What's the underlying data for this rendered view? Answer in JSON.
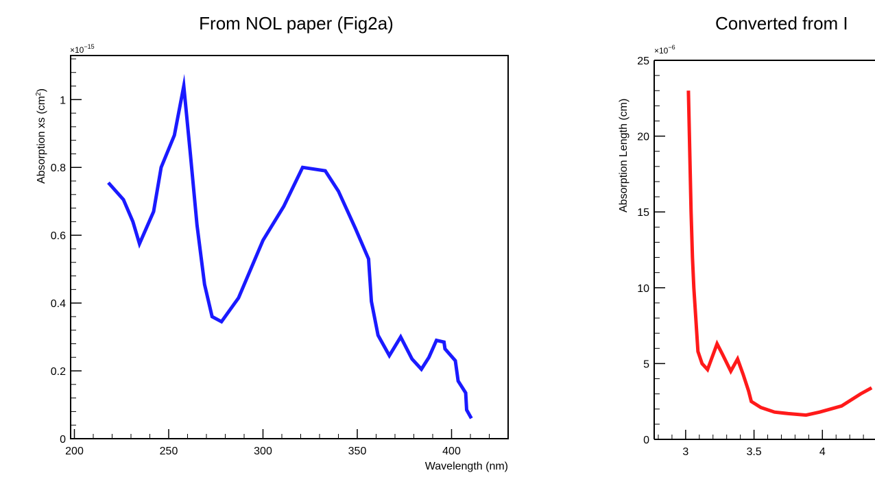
{
  "chart_data": [
    {
      "type": "line",
      "title": "From NOL paper (Fig2a)",
      "xlabel": "Wavelength (nm)",
      "ylabel": "Absorption xs (cm",
      "ylabel_sup": "2",
      "ylabel_close": ")",
      "y_multiplier": "×10",
      "y_multiplier_exp": "−15",
      "xlim": [
        198,
        430
      ],
      "ylim": [
        0,
        1.13
      ],
      "xticks": [
        200,
        250,
        300,
        350,
        400
      ],
      "xtick_labels": [
        "200",
        "250",
        "300",
        "350",
        "400"
      ],
      "yticks": [
        0,
        0.2,
        0.4,
        0.6,
        0.8,
        1
      ],
      "ytick_labels": [
        "0",
        "0.2",
        "0.4",
        "0.6",
        "0.8",
        "1"
      ],
      "color": "#1a1aff",
      "series": [
        {
          "x": [
            218,
            226,
            231,
            234.5,
            242,
            246,
            253,
            258,
            261.5,
            265,
            269,
            273,
            278,
            287,
            300,
            311,
            321,
            333,
            340,
            349,
            356,
            357.5,
            361,
            367,
            373,
            379,
            384,
            388,
            392,
            396,
            396.5,
            402,
            403.5,
            407.5,
            408,
            410.5
          ],
          "y": [
            0.755,
            0.705,
            0.64,
            0.575,
            0.67,
            0.8,
            0.895,
            1.04,
            0.84,
            0.63,
            0.455,
            0.36,
            0.345,
            0.415,
            0.585,
            0.685,
            0.8,
            0.79,
            0.73,
            0.62,
            0.53,
            0.405,
            0.305,
            0.245,
            0.3,
            0.235,
            0.205,
            0.24,
            0.29,
            0.285,
            0.265,
            0.23,
            0.17,
            0.135,
            0.085,
            0.06
          ]
        }
      ]
    },
    {
      "type": "line",
      "title": "Converted from I",
      "xlabel": "",
      "ylabel": "Absorption Length (cm)",
      "y_multiplier": "×10",
      "y_multiplier_exp": "−6",
      "xlim": [
        2.77,
        4.5
      ],
      "ylim": [
        0,
        25
      ],
      "xticks": [
        3,
        3.5,
        4
      ],
      "xtick_labels": [
        "3",
        "3.5",
        "4"
      ],
      "yticks": [
        0,
        5,
        10,
        15,
        20,
        25
      ],
      "ytick_labels": [
        "0",
        "5",
        "10",
        "15",
        "20",
        "25"
      ],
      "color": "#ff1a1a",
      "series": [
        {
          "x": [
            3.02,
            3.04,
            3.05,
            3.06,
            3.09,
            3.12,
            3.16,
            3.23,
            3.27,
            3.33,
            3.38,
            3.42,
            3.46,
            3.48,
            3.55,
            3.65,
            3.75,
            3.88,
            3.98,
            4.14,
            4.28,
            4.36
          ],
          "y": [
            23.0,
            15.0,
            12.0,
            10.0,
            5.8,
            5.0,
            4.6,
            6.3,
            5.6,
            4.5,
            5.3,
            4.3,
            3.2,
            2.5,
            2.1,
            1.8,
            1.7,
            1.6,
            1.8,
            2.2,
            3.0,
            3.4
          ]
        }
      ]
    }
  ]
}
